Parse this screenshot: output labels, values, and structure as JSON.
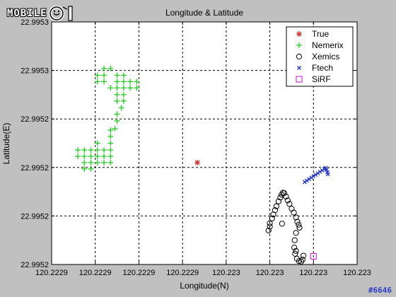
{
  "logo": {
    "text": "MOBILE",
    "mark": "01"
  },
  "watermark": "#6646",
  "chart_data": {
    "type": "scatter",
    "title": "Longitude & Latitude",
    "xlabel": "Longitude(N)",
    "ylabel": "Latitude(E)",
    "xlim": [
      0,
      7
    ],
    "ylim": [
      0,
      5
    ],
    "grid": true,
    "x_tick_labels": [
      "120.2229",
      "120.2229",
      "120.2229",
      "120.2229",
      "120.223",
      "120.223",
      "120.223",
      "120.223"
    ],
    "y_tick_labels": [
      "22.9952",
      "22.9952",
      "22.9952",
      "22.9952",
      "22.9953",
      "22.9953"
    ],
    "legend_position": "top-right",
    "series": [
      {
        "name": "True",
        "marker": "asterisk",
        "color": "#cc2222",
        "points": [
          [
            3.34,
            2.1
          ]
        ]
      },
      {
        "name": "Nemerix",
        "marker": "plus",
        "color": "#22cc22",
        "points": [
          [
            0.6,
            2.36
          ],
          [
            0.75,
            2.36
          ],
          [
            0.9,
            2.36
          ],
          [
            1.05,
            2.36
          ],
          [
            1.2,
            2.36
          ],
          [
            1.35,
            2.36
          ],
          [
            0.6,
            2.23
          ],
          [
            0.75,
            2.23
          ],
          [
            0.9,
            2.23
          ],
          [
            1.05,
            2.23
          ],
          [
            1.2,
            2.23
          ],
          [
            1.35,
            2.23
          ],
          [
            0.75,
            2.1
          ],
          [
            0.9,
            2.1
          ],
          [
            1.05,
            2.1
          ],
          [
            1.2,
            2.1
          ],
          [
            1.35,
            2.1
          ],
          [
            0.75,
            1.97
          ],
          [
            0.9,
            1.97
          ],
          [
            1.05,
            2.5
          ],
          [
            1.35,
            2.5
          ],
          [
            1.35,
            2.64
          ],
          [
            1.35,
            2.77
          ],
          [
            1.45,
            2.8
          ],
          [
            1.5,
            2.96
          ],
          [
            1.5,
            3.1
          ],
          [
            1.6,
            3.23
          ],
          [
            1.5,
            3.37
          ],
          [
            1.65,
            3.37
          ],
          [
            1.5,
            3.5
          ],
          [
            1.65,
            3.5
          ],
          [
            1.35,
            3.64
          ],
          [
            1.5,
            3.64
          ],
          [
            1.65,
            3.64
          ],
          [
            1.8,
            3.64
          ],
          [
            1.95,
            3.64
          ],
          [
            1.05,
            3.77
          ],
          [
            1.2,
            3.77
          ],
          [
            1.5,
            3.77
          ],
          [
            1.65,
            3.77
          ],
          [
            1.8,
            3.77
          ],
          [
            1.95,
            3.77
          ],
          [
            1.05,
            3.9
          ],
          [
            1.2,
            3.9
          ],
          [
            1.5,
            3.9
          ],
          [
            1.65,
            3.9
          ],
          [
            1.2,
            4.04
          ],
          [
            1.35,
            4.04
          ]
        ]
      },
      {
        "name": "Xemics",
        "marker": "circle",
        "color": "#000000",
        "points": [
          [
            4.97,
            0.7
          ],
          [
            5.0,
            0.78
          ],
          [
            5.0,
            0.85
          ],
          [
            5.05,
            0.95
          ],
          [
            5.08,
            1.03
          ],
          [
            5.12,
            1.12
          ],
          [
            5.15,
            1.2
          ],
          [
            5.2,
            1.3
          ],
          [
            5.24,
            1.38
          ],
          [
            5.27,
            1.44
          ],
          [
            5.3,
            1.48
          ],
          [
            5.33,
            1.47
          ],
          [
            5.37,
            1.4
          ],
          [
            5.41,
            1.32
          ],
          [
            5.45,
            1.25
          ],
          [
            5.5,
            1.15
          ],
          [
            5.55,
            1.07
          ],
          [
            5.6,
            0.97
          ],
          [
            5.63,
            0.88
          ],
          [
            5.66,
            0.82
          ],
          [
            5.68,
            0.76
          ],
          [
            5.6,
            0.65
          ],
          [
            5.57,
            0.5
          ],
          [
            5.56,
            0.35
          ],
          [
            5.58,
            0.22
          ],
          [
            5.62,
            0.12
          ],
          [
            5.67,
            0.07
          ],
          [
            5.72,
            0.06
          ],
          [
            5.75,
            0.1
          ],
          [
            5.77,
            0.18
          ],
          [
            5.6,
            0.28
          ],
          [
            5.28,
            0.84
          ]
        ]
      },
      {
        "name": "Ftech",
        "marker": "x",
        "color": "#2233cc",
        "points": [
          [
            5.8,
            1.7
          ],
          [
            5.85,
            1.73
          ],
          [
            5.9,
            1.76
          ],
          [
            5.95,
            1.79
          ],
          [
            6.0,
            1.82
          ],
          [
            6.05,
            1.85
          ],
          [
            6.1,
            1.88
          ],
          [
            6.15,
            1.91
          ],
          [
            6.2,
            1.94
          ],
          [
            6.25,
            1.97
          ],
          [
            6.28,
            1.99
          ],
          [
            6.3,
            1.95
          ],
          [
            6.32,
            1.9
          ],
          [
            6.33,
            1.86
          ]
        ]
      },
      {
        "name": "SiRF",
        "marker": "square",
        "color": "#cc22cc",
        "points": [
          [
            6.0,
            0.17
          ]
        ]
      }
    ]
  }
}
